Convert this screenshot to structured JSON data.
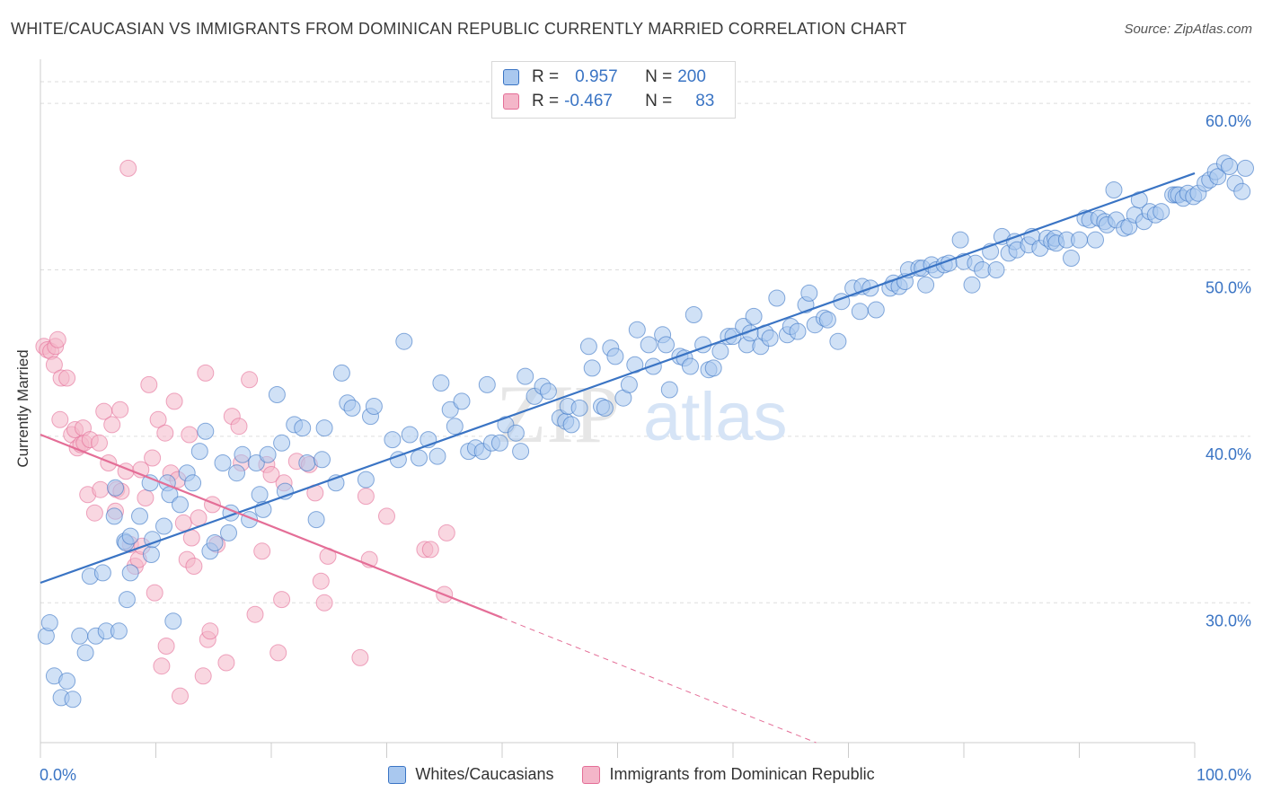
{
  "title": "WHITE/CAUCASIAN VS IMMIGRANTS FROM DOMINICAN REPUBLIC CURRENTLY MARRIED CORRELATION CHART",
  "source": "Source: ZipAtlas.com",
  "watermark": {
    "zip": "ZIP",
    "atlas": "atlas"
  },
  "legend_top": {
    "rows": [
      {
        "r_label": "R =",
        "r_value": "0.957",
        "n_label": "N =",
        "n_value": "200",
        "color": "#a9c8ef"
      },
      {
        "r_label": "R =",
        "r_value": "-0.467",
        "n_label": "N =",
        "n_value": "83",
        "color": "#f4b6c9"
      }
    ]
  },
  "chart_data": {
    "type": "scatter",
    "title": "WHITE/CAUCASIAN VS IMMIGRANTS FROM DOMINICAN REPUBLIC CURRENTLY MARRIED CORRELATION CHART",
    "xlabel": "",
    "ylabel": "Currently Married",
    "xlim": [
      0,
      100
    ],
    "ylim": [
      21.6,
      62
    ],
    "x_tick_labels": [
      "0.0%",
      "100.0%"
    ],
    "y_ticks": [
      30,
      40,
      50,
      60
    ],
    "y_tick_labels": [
      "30.0%",
      "40.0%",
      "50.0%",
      "60.0%"
    ],
    "grid": true,
    "legend_position": "bottom",
    "series": [
      {
        "name": "Whites/Caucasians",
        "color": "#3a74c4",
        "fill": "#a9c8ef",
        "trend": {
          "x": [
            0,
            100
          ],
          "y": [
            31.2,
            55.8
          ]
        },
        "points": [
          [
            0.5,
            28.0
          ],
          [
            0.8,
            28.8
          ],
          [
            1.2,
            25.6
          ],
          [
            1.8,
            24.3
          ],
          [
            2.3,
            25.3
          ],
          [
            2.8,
            24.2
          ],
          [
            3.4,
            28.0
          ],
          [
            3.9,
            27.0
          ],
          [
            4.3,
            31.6
          ],
          [
            4.8,
            28.0
          ],
          [
            5.4,
            31.8
          ],
          [
            5.7,
            28.3
          ],
          [
            6.4,
            35.2
          ],
          [
            6.5,
            36.9
          ],
          [
            6.8,
            28.3
          ],
          [
            7.3,
            33.7
          ],
          [
            7.4,
            33.6
          ],
          [
            7.5,
            30.2
          ],
          [
            7.8,
            34.0
          ],
          [
            7.8,
            31.8
          ],
          [
            8.6,
            35.2
          ],
          [
            9.5,
            37.2
          ],
          [
            9.6,
            32.9
          ],
          [
            9.7,
            33.8
          ],
          [
            10.7,
            34.6
          ],
          [
            11.0,
            37.2
          ],
          [
            11.2,
            36.5
          ],
          [
            11.5,
            28.9
          ],
          [
            12.1,
            35.9
          ],
          [
            12.7,
            37.8
          ],
          [
            13.2,
            37.2
          ],
          [
            13.8,
            39.1
          ],
          [
            14.3,
            40.3
          ],
          [
            14.7,
            33.1
          ],
          [
            15.1,
            33.6
          ],
          [
            15.8,
            38.4
          ],
          [
            16.3,
            34.2
          ],
          [
            16.5,
            35.4
          ],
          [
            17.0,
            37.8
          ],
          [
            17.5,
            38.9
          ],
          [
            18.1,
            35.0
          ],
          [
            18.7,
            38.4
          ],
          [
            19.0,
            36.5
          ],
          [
            19.3,
            35.6
          ],
          [
            19.7,
            38.9
          ],
          [
            20.5,
            42.5
          ],
          [
            20.9,
            39.6
          ],
          [
            21.2,
            36.7
          ],
          [
            22.0,
            40.7
          ],
          [
            22.7,
            40.5
          ],
          [
            23.1,
            38.4
          ],
          [
            23.9,
            35.0
          ],
          [
            24.4,
            38.6
          ],
          [
            24.6,
            40.5
          ],
          [
            25.6,
            37.2
          ],
          [
            26.1,
            43.8
          ],
          [
            26.6,
            42.0
          ],
          [
            27.0,
            41.7
          ],
          [
            28.2,
            37.4
          ],
          [
            28.6,
            41.2
          ],
          [
            28.9,
            41.8
          ],
          [
            30.5,
            39.8
          ],
          [
            31.0,
            38.6
          ],
          [
            31.5,
            45.7
          ],
          [
            32.0,
            40.1
          ],
          [
            32.8,
            38.7
          ],
          [
            33.6,
            39.8
          ],
          [
            34.4,
            38.8
          ],
          [
            34.7,
            43.2
          ],
          [
            35.5,
            41.6
          ],
          [
            35.9,
            40.6
          ],
          [
            36.5,
            42.1
          ],
          [
            37.1,
            39.1
          ],
          [
            37.7,
            39.3
          ],
          [
            38.3,
            39.1
          ],
          [
            38.7,
            43.1
          ],
          [
            39.1,
            39.6
          ],
          [
            39.8,
            39.6
          ],
          [
            40.3,
            40.7
          ],
          [
            41.2,
            40.2
          ],
          [
            41.6,
            39.1
          ],
          [
            42.0,
            43.6
          ],
          [
            42.8,
            42.4
          ],
          [
            43.5,
            43.0
          ],
          [
            44.0,
            42.7
          ],
          [
            45.0,
            41.1
          ],
          [
            45.5,
            40.9
          ],
          [
            45.7,
            41.8
          ],
          [
            46.0,
            40.7
          ],
          [
            46.7,
            41.7
          ],
          [
            47.5,
            45.4
          ],
          [
            47.8,
            44.1
          ],
          [
            48.6,
            41.8
          ],
          [
            48.9,
            41.7
          ],
          [
            49.4,
            45.3
          ],
          [
            49.8,
            44.8
          ],
          [
            50.5,
            42.3
          ],
          [
            51.0,
            43.1
          ],
          [
            51.5,
            44.3
          ],
          [
            51.7,
            46.4
          ],
          [
            52.7,
            45.5
          ],
          [
            53.1,
            44.2
          ],
          [
            53.9,
            46.1
          ],
          [
            54.2,
            45.5
          ],
          [
            54.5,
            42.8
          ],
          [
            55.4,
            44.8
          ],
          [
            55.8,
            44.7
          ],
          [
            56.3,
            44.2
          ],
          [
            56.6,
            47.3
          ],
          [
            57.4,
            45.5
          ],
          [
            57.9,
            44.0
          ],
          [
            58.3,
            44.1
          ],
          [
            58.9,
            45.1
          ],
          [
            59.6,
            46.0
          ],
          [
            60.0,
            46.0
          ],
          [
            60.9,
            46.6
          ],
          [
            61.2,
            45.5
          ],
          [
            61.5,
            46.2
          ],
          [
            61.8,
            47.2
          ],
          [
            62.4,
            45.4
          ],
          [
            62.8,
            46.2
          ],
          [
            63.2,
            45.9
          ],
          [
            63.8,
            48.3
          ],
          [
            64.7,
            46.1
          ],
          [
            65.0,
            46.6
          ],
          [
            65.6,
            46.3
          ],
          [
            66.3,
            47.9
          ],
          [
            66.6,
            48.6
          ],
          [
            67.1,
            46.7
          ],
          [
            67.9,
            47.1
          ],
          [
            68.2,
            47.0
          ],
          [
            69.1,
            45.7
          ],
          [
            69.4,
            48.1
          ],
          [
            70.4,
            48.9
          ],
          [
            71.0,
            47.5
          ],
          [
            71.2,
            49.0
          ],
          [
            71.9,
            48.9
          ],
          [
            72.4,
            47.6
          ],
          [
            73.6,
            48.9
          ],
          [
            73.9,
            49.2
          ],
          [
            74.4,
            49.0
          ],
          [
            74.9,
            49.3
          ],
          [
            75.2,
            50.0
          ],
          [
            76.1,
            50.1
          ],
          [
            76.4,
            50.1
          ],
          [
            76.7,
            49.1
          ],
          [
            77.2,
            50.3
          ],
          [
            77.6,
            50.0
          ],
          [
            78.3,
            50.3
          ],
          [
            78.7,
            50.4
          ],
          [
            79.7,
            51.8
          ],
          [
            80.0,
            50.5
          ],
          [
            80.7,
            49.1
          ],
          [
            81.0,
            50.4
          ],
          [
            81.6,
            50.0
          ],
          [
            82.3,
            51.1
          ],
          [
            82.8,
            50.0
          ],
          [
            83.3,
            52.0
          ],
          [
            83.9,
            51.0
          ],
          [
            84.4,
            51.7
          ],
          [
            84.6,
            51.2
          ],
          [
            85.6,
            51.5
          ],
          [
            85.9,
            52.0
          ],
          [
            86.6,
            51.3
          ],
          [
            87.2,
            51.9
          ],
          [
            87.6,
            51.7
          ],
          [
            87.9,
            51.9
          ],
          [
            88.0,
            51.6
          ],
          [
            88.9,
            51.8
          ],
          [
            89.3,
            50.7
          ],
          [
            90.0,
            51.8
          ],
          [
            90.5,
            53.1
          ],
          [
            90.9,
            53.0
          ],
          [
            91.4,
            51.8
          ],
          [
            91.7,
            53.1
          ],
          [
            92.2,
            52.9
          ],
          [
            92.4,
            52.7
          ],
          [
            93.0,
            54.8
          ],
          [
            93.2,
            53.0
          ],
          [
            93.9,
            52.5
          ],
          [
            94.3,
            52.6
          ],
          [
            94.8,
            53.3
          ],
          [
            95.2,
            54.2
          ],
          [
            95.6,
            52.9
          ],
          [
            96.1,
            53.5
          ],
          [
            96.6,
            53.3
          ],
          [
            97.1,
            53.5
          ],
          [
            98.1,
            54.5
          ],
          [
            98.4,
            54.5
          ],
          [
            98.6,
            54.5
          ],
          [
            99.0,
            54.3
          ],
          [
            99.4,
            54.6
          ],
          [
            99.9,
            54.4
          ],
          [
            100.3,
            54.6
          ],
          [
            100.9,
            55.2
          ],
          [
            101.3,
            55.4
          ],
          [
            101.8,
            55.9
          ],
          [
            102.0,
            55.6
          ],
          [
            102.6,
            56.4
          ],
          [
            103.0,
            56.2
          ],
          [
            103.5,
            55.2
          ],
          [
            104.1,
            54.7
          ],
          [
            104.4,
            56.1
          ]
        ]
      },
      {
        "name": "Immigrants from Dominican Republic",
        "color": "#e46e97",
        "fill": "#f4b6c9",
        "trend": {
          "x": [
            0,
            40
          ],
          "y": [
            40.1,
            29.1
          ]
        },
        "trend_dashed": {
          "x": [
            40,
            73
          ],
          "y": [
            29.1,
            20.0
          ]
        },
        "points": [
          [
            0.3,
            45.4
          ],
          [
            0.6,
            45.2
          ],
          [
            0.9,
            45.1
          ],
          [
            1.3,
            45.4
          ],
          [
            1.2,
            44.3
          ],
          [
            1.5,
            45.8
          ],
          [
            1.7,
            41.0
          ],
          [
            1.8,
            43.5
          ],
          [
            2.3,
            43.5
          ],
          [
            2.7,
            40.1
          ],
          [
            3.0,
            40.4
          ],
          [
            3.2,
            39.3
          ],
          [
            3.5,
            39.5
          ],
          [
            3.7,
            40.5
          ],
          [
            3.8,
            39.6
          ],
          [
            4.1,
            36.5
          ],
          [
            4.3,
            39.8
          ],
          [
            4.7,
            35.4
          ],
          [
            5.1,
            39.6
          ],
          [
            5.2,
            36.8
          ],
          [
            5.5,
            41.5
          ],
          [
            5.9,
            38.4
          ],
          [
            6.2,
            40.7
          ],
          [
            6.5,
            35.5
          ],
          [
            6.6,
            36.8
          ],
          [
            6.9,
            41.6
          ],
          [
            7.0,
            36.7
          ],
          [
            7.4,
            37.9
          ],
          [
            7.6,
            56.1
          ],
          [
            7.8,
            33.5
          ],
          [
            8.2,
            32.2
          ],
          [
            8.5,
            32.6
          ],
          [
            8.7,
            38.0
          ],
          [
            8.8,
            33.4
          ],
          [
            9.1,
            36.3
          ],
          [
            9.4,
            43.1
          ],
          [
            9.7,
            38.7
          ],
          [
            9.9,
            30.6
          ],
          [
            10.2,
            41.0
          ],
          [
            10.5,
            26.2
          ],
          [
            10.8,
            40.2
          ],
          [
            10.9,
            27.4
          ],
          [
            11.3,
            37.8
          ],
          [
            11.6,
            42.1
          ],
          [
            11.9,
            37.4
          ],
          [
            12.1,
            24.4
          ],
          [
            12.4,
            34.8
          ],
          [
            12.7,
            32.6
          ],
          [
            12.9,
            40.1
          ],
          [
            13.1,
            33.9
          ],
          [
            13.3,
            32.2
          ],
          [
            13.7,
            35.1
          ],
          [
            14.1,
            25.6
          ],
          [
            14.3,
            43.8
          ],
          [
            14.5,
            27.8
          ],
          [
            14.7,
            28.3
          ],
          [
            14.9,
            35.9
          ],
          [
            15.3,
            33.5
          ],
          [
            16.1,
            26.4
          ],
          [
            16.6,
            41.2
          ],
          [
            17.2,
            40.6
          ],
          [
            17.4,
            38.4
          ],
          [
            18.1,
            43.4
          ],
          [
            18.6,
            29.3
          ],
          [
            19.2,
            33.1
          ],
          [
            19.6,
            38.3
          ],
          [
            20.0,
            37.7
          ],
          [
            20.6,
            27.0
          ],
          [
            20.9,
            30.2
          ],
          [
            21.1,
            37.2
          ],
          [
            22.2,
            38.5
          ],
          [
            23.3,
            38.3
          ],
          [
            23.8,
            36.6
          ],
          [
            24.3,
            31.3
          ],
          [
            24.6,
            30.0
          ],
          [
            24.9,
            32.8
          ],
          [
            27.7,
            26.7
          ],
          [
            28.2,
            36.4
          ],
          [
            28.5,
            32.6
          ],
          [
            30.0,
            35.2
          ],
          [
            33.3,
            33.2
          ],
          [
            33.8,
            33.2
          ],
          [
            35.2,
            34.2
          ],
          [
            35.0,
            30.5
          ]
        ]
      }
    ]
  }
}
